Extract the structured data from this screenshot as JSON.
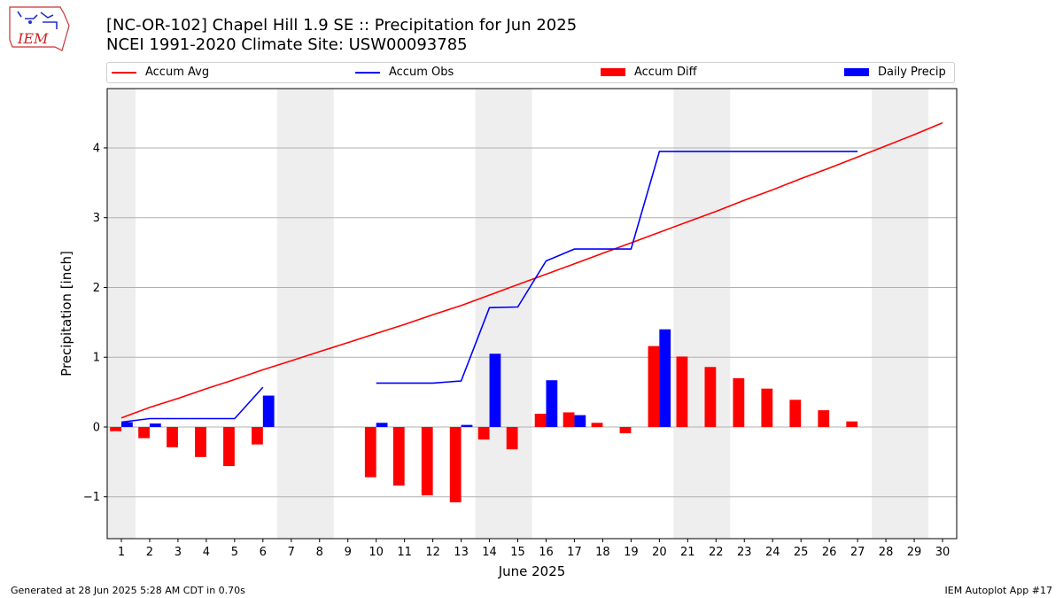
{
  "brand": {
    "logo_text": "IEM"
  },
  "title_line1": "[NC-OR-102] Chapel Hill 1.9 SE :: Precipitation for Jun 2025",
  "title_line2": "NCEI 1991-2020 Climate Site: USW00093785",
  "footer_left": "Generated at 28 Jun 2025 5:28 AM CDT in 0.70s",
  "footer_right": "IEM Autoplot App #17",
  "chart_data": {
    "type": "bar",
    "xlabel": "June 2025",
    "ylabel": "Precipitation [inch]",
    "xlim": [
      0.5,
      30.5
    ],
    "ylim": [
      -1.6,
      4.85
    ],
    "yticks": [
      -1,
      0,
      1,
      2,
      3,
      4
    ],
    "xticks": [
      1,
      2,
      3,
      4,
      5,
      6,
      7,
      8,
      9,
      10,
      11,
      12,
      13,
      14,
      15,
      16,
      17,
      18,
      19,
      20,
      21,
      22,
      23,
      24,
      25,
      26,
      27,
      28,
      29,
      30
    ],
    "grid": "horizontal",
    "legend_position": "top",
    "weekend_shading": [
      [
        0.5,
        1.5
      ],
      [
        6.5,
        8.5
      ],
      [
        13.5,
        15.5
      ],
      [
        20.5,
        22.5
      ],
      [
        27.5,
        29.5
      ]
    ],
    "colors": {
      "avg": "#ff0000",
      "obs": "#0000ff",
      "diff": "#ff0000",
      "daily": "#0000ff",
      "shade": "#eeeeee"
    },
    "series": [
      {
        "name": "Accum Avg",
        "kind": "line",
        "color": "#ff0000",
        "x": [
          1,
          2,
          3,
          4,
          5,
          6,
          7,
          8,
          9,
          10,
          11,
          12,
          13,
          14,
          15,
          16,
          17,
          18,
          19,
          20,
          21,
          22,
          23,
          24,
          25,
          26,
          27,
          28,
          29,
          30
        ],
        "values": [
          0.13,
          0.28,
          0.41,
          0.55,
          0.68,
          0.82,
          0.95,
          1.08,
          1.21,
          1.34,
          1.47,
          1.61,
          1.74,
          1.89,
          2.04,
          2.19,
          2.34,
          2.49,
          2.64,
          2.79,
          2.94,
          3.09,
          3.25,
          3.4,
          3.56,
          3.71,
          3.87,
          4.03,
          4.19,
          4.36
        ]
      },
      {
        "name": "Accum Obs",
        "kind": "line",
        "color": "#0000ff",
        "x": [
          1,
          2,
          3,
          4,
          5,
          6,
          7,
          8,
          9,
          10,
          11,
          12,
          13,
          14,
          15,
          16,
          17,
          18,
          19,
          20,
          21,
          22,
          23,
          24,
          25,
          26,
          27
        ],
        "values": [
          0.07,
          0.12,
          0.12,
          0.12,
          0.12,
          0.57,
          null,
          null,
          null,
          0.63,
          0.63,
          0.63,
          0.66,
          1.71,
          1.72,
          2.38,
          2.55,
          2.55,
          2.55,
          3.95,
          3.95,
          3.95,
          3.95,
          3.95,
          3.95,
          3.95,
          3.95
        ]
      },
      {
        "name": "Accum Diff",
        "kind": "bar",
        "color": "#ff0000",
        "x": [
          1,
          2,
          3,
          4,
          5,
          6,
          10,
          11,
          12,
          13,
          14,
          15,
          16,
          17,
          18,
          19,
          20,
          21,
          22,
          23,
          24,
          25,
          26,
          27
        ],
        "values": [
          -0.06,
          -0.16,
          -0.29,
          -0.43,
          -0.56,
          -0.25,
          -0.72,
          -0.84,
          -0.98,
          -1.08,
          -0.18,
          -0.32,
          0.19,
          0.21,
          0.06,
          -0.09,
          1.16,
          1.01,
          0.86,
          0.7,
          0.55,
          0.39,
          0.24,
          0.08
        ]
      },
      {
        "name": "Daily Precip",
        "kind": "bar",
        "color": "#0000ff",
        "x": [
          1,
          2,
          6,
          10,
          13,
          14,
          16,
          17,
          20
        ],
        "values": [
          0.07,
          0.05,
          0.45,
          0.06,
          0.03,
          1.05,
          0.67,
          0.17,
          1.4
        ]
      }
    ]
  }
}
